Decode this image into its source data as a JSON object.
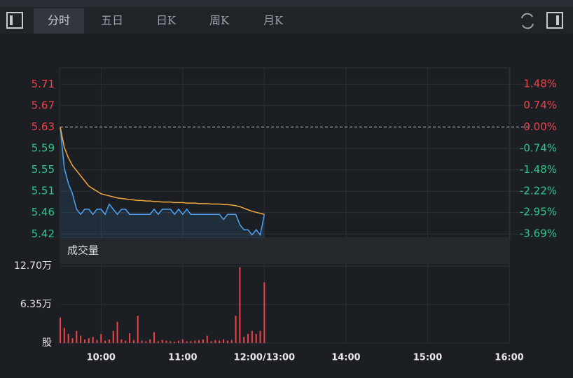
{
  "toolbar": {
    "tabs": [
      "分时",
      "五日",
      "日K",
      "周K",
      "月K"
    ]
  },
  "chart_data": [
    {
      "type": "line",
      "x": [
        0,
        3,
        6,
        9,
        12,
        15,
        18,
        21,
        24,
        27,
        30,
        33,
        36,
        39,
        42,
        45,
        48,
        51,
        54,
        57,
        60,
        63,
        66,
        69,
        72,
        75,
        78,
        81,
        84,
        87,
        90,
        93,
        96,
        99,
        102,
        105,
        108,
        111,
        114,
        117,
        120,
        123,
        126,
        129,
        132,
        135,
        138,
        141,
        144,
        147,
        150
      ],
      "xlim": [
        0,
        330
      ],
      "xticks": [
        {
          "value": 30,
          "label": "10:00"
        },
        {
          "value": 90,
          "label": "11:00"
        },
        {
          "value": 150,
          "label": "12:00/13:00"
        },
        {
          "value": 210,
          "label": "14:00"
        },
        {
          "value": 270,
          "label": "15:00"
        },
        {
          "value": 330,
          "label": "16:00"
        }
      ],
      "ylim": [
        5.414,
        5.745
      ],
      "yticks": [
        {
          "value": 5.7133,
          "label": "5.71"
        },
        {
          "value": 5.6717,
          "label": "5.67"
        },
        5.63,
        {
          "value": 5.5883,
          "label": "5.59"
        },
        {
          "value": 5.5467,
          "label": "5.55"
        },
        {
          "value": 5.505,
          "label": "5.51"
        },
        {
          "value": 5.4634,
          "label": "5.46"
        },
        {
          "value": 5.4217,
          "label": "5.42"
        }
      ],
      "y2lim": [
        -3.84,
        2.04
      ],
      "y2ticks": [
        {
          "value": 1.48,
          "label": "1.48%"
        },
        {
          "value": 0.74,
          "label": "0.74%"
        },
        {
          "value": 0,
          "label": "0.00%"
        },
        {
          "value": -0.74,
          "label": "-0.74%"
        },
        {
          "value": -1.48,
          "label": "-1.48%"
        },
        {
          "value": -2.22,
          "label": "-2.22%"
        },
        {
          "value": -2.95,
          "label": "-2.95%"
        },
        {
          "value": -3.69,
          "label": "-3.69%"
        }
      ],
      "grid": true,
      "up_color": "#f0434a",
      "down_color": "#2ec58b",
      "series": [
        {
          "color": "#4ea4f5",
          "values": [
            5.63,
            5.55,
            5.52,
            5.5,
            5.47,
            5.46,
            5.47,
            5.47,
            5.46,
            5.47,
            5.47,
            5.46,
            5.48,
            5.47,
            5.46,
            5.47,
            5.47,
            5.46,
            5.46,
            5.46,
            5.46,
            5.46,
            5.46,
            5.47,
            5.46,
            5.47,
            5.47,
            5.47,
            5.46,
            5.47,
            5.46,
            5.47,
            5.46,
            5.46,
            5.46,
            5.46,
            5.46,
            5.46,
            5.46,
            5.46,
            5.45,
            5.46,
            5.46,
            5.46,
            5.44,
            5.43,
            5.43,
            5.42,
            5.43,
            5.42,
            5.46
          ]
        },
        {
          "color": "#f2a93b",
          "values": [
            5.63,
            5.59,
            5.57,
            5.555,
            5.545,
            5.535,
            5.525,
            5.515,
            5.51,
            5.505,
            5.5,
            5.498,
            5.496,
            5.494,
            5.492,
            5.491,
            5.49,
            5.489,
            5.488,
            5.487,
            5.487,
            5.486,
            5.486,
            5.485,
            5.485,
            5.484,
            5.484,
            5.484,
            5.483,
            5.483,
            5.483,
            5.482,
            5.482,
            5.482,
            5.481,
            5.481,
            5.481,
            5.48,
            5.48,
            5.48,
            5.479,
            5.479,
            5.478,
            5.477,
            5.475,
            5.472,
            5.469,
            5.466,
            5.464,
            5.462,
            5.46
          ]
        }
      ]
    },
    {
      "type": "bar",
      "title": "成交量",
      "x": [
        0,
        3,
        6,
        9,
        12,
        15,
        18,
        21,
        24,
        27,
        30,
        33,
        36,
        39,
        42,
        45,
        48,
        51,
        54,
        57,
        60,
        63,
        66,
        69,
        72,
        75,
        78,
        81,
        84,
        87,
        90,
        93,
        96,
        99,
        102,
        105,
        108,
        111,
        114,
        117,
        120,
        123,
        126,
        129,
        132,
        135,
        138,
        141,
        144,
        147,
        150
      ],
      "xlim": [
        0,
        330
      ],
      "ylim": [
        0,
        13.05
      ],
      "yticks": [
        {
          "value": 12.7,
          "label": "12.70万"
        },
        {
          "value": 6.35,
          "label": "6.35万"
        },
        {
          "value": 0,
          "label": "股"
        }
      ],
      "color": "#f0434a",
      "values": [
        4.2,
        2.5,
        1.5,
        0.8,
        2.0,
        1.2,
        0.6,
        0.8,
        1.0,
        0.5,
        1.5,
        0.4,
        0.6,
        2.0,
        3.5,
        0.6,
        0.4,
        1.6,
        0.5,
        4.5,
        0.4,
        0.3,
        0.6,
        1.8,
        0.3,
        0.5,
        0.4,
        0.3,
        0.2,
        0.4,
        0.6,
        0.3,
        0.3,
        0.4,
        0.5,
        0.6,
        1.2,
        0.3,
        0.5,
        0.4,
        0.6,
        0.4,
        0.5,
        4.5,
        12.5,
        1.0,
        1.5,
        2.0,
        1.5,
        2.0,
        10.0
      ]
    }
  ]
}
